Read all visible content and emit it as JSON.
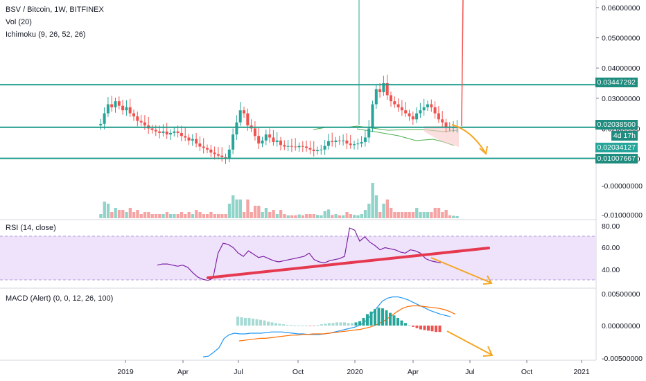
{
  "header": {
    "title": "BSV / Bitcoin, 1W, BITFINEX",
    "vol_label": "Vol (20)",
    "ichimoku_label": "Ichimoku (9, 26, 52, 26)",
    "rsi_label": "RSI (14, close)",
    "macd_label": "MACD (Alert) (0, 0, 12, 26, 100)"
  },
  "colors": {
    "up": "#26a69a",
    "down": "#ef5350",
    "level_line": "#1e9c8a",
    "rsi_band": "#e9dcfb",
    "rsi_line": "#7b1fa2",
    "trend": "#e53950",
    "arrow": "#f5a623",
    "macd": "#2196f3",
    "signal": "#ff6d00",
    "cloud_line": "#4caf50"
  },
  "price_scale": {
    "ticks": [
      "0.06000000",
      "0.05000000",
      "0.04000000",
      "0.03000000",
      "0.02000000",
      "0.01000000"
    ],
    "level_labels": [
      "0.03447292",
      "0.02038500",
      "4d 17h",
      "0.02034127",
      "0.01007667"
    ]
  },
  "volume_scale": {
    "ticks": [
      "-0.00000000",
      "-0.01000000"
    ]
  },
  "rsi_scale": {
    "ticks": [
      "80.00",
      "60.00",
      "40.00"
    ]
  },
  "macd_scale": {
    "ticks": [
      "0.00500000",
      "0.00000000",
      "-0.00500000"
    ]
  },
  "time_axis": {
    "ticks": [
      "2019",
      "Apr",
      "Jul",
      "Oct",
      "2020",
      "Apr",
      "Jul",
      "Oct",
      "2021"
    ]
  },
  "chart_data": {
    "type": "line",
    "price": [
      0.021,
      0.0215,
      0.025,
      0.028,
      0.027,
      0.029,
      0.0275,
      0.026,
      0.027,
      0.025,
      0.024,
      0.0225,
      0.022,
      0.021,
      0.02,
      0.0195,
      0.019,
      0.0185,
      0.019,
      0.018,
      0.0185,
      0.019,
      0.0185,
      0.0175,
      0.017,
      0.016,
      0.0165,
      0.015,
      0.014,
      0.0135,
      0.013,
      0.012,
      0.0115,
      0.011,
      0.0105,
      0.01,
      0.013,
      0.018,
      0.022,
      0.026,
      0.025,
      0.021,
      0.02,
      0.0175,
      0.015,
      0.016,
      0.018,
      0.017,
      0.0155,
      0.016,
      0.0145,
      0.014,
      0.0142,
      0.014,
      0.0138,
      0.0142,
      0.014,
      0.0135,
      0.013,
      0.0125,
      0.0128,
      0.013,
      0.0142,
      0.0158,
      0.0155,
      0.016,
      0.0158,
      0.016,
      0.015,
      0.0145,
      0.0148,
      0.015,
      0.0155,
      0.017,
      0.02,
      0.028,
      0.033,
      0.032,
      0.035,
      0.031,
      0.029,
      0.028,
      0.027,
      0.026,
      0.025,
      0.024,
      0.023,
      0.025,
      0.026,
      0.027,
      0.028,
      0.027,
      0.025,
      0.023,
      0.022,
      0.0205,
      0.0203,
      0.0204,
      0.0204
    ],
    "rsi": [
      44,
      45,
      45,
      44,
      43,
      44,
      42,
      37,
      33,
      31,
      30,
      32,
      55,
      64,
      63,
      60,
      55,
      52,
      57,
      54,
      51,
      52,
      50,
      48,
      47,
      48,
      49,
      50,
      51,
      52,
      55,
      49,
      47,
      46,
      48,
      49,
      50,
      52,
      78,
      76,
      66,
      70,
      65,
      62,
      58,
      60,
      59,
      58,
      56,
      55,
      58,
      57,
      55,
      50,
      48,
      47,
      46
    ],
    "rsi_start": 25,
    "macd": [
      -0.0049,
      -0.0048,
      -0.0042,
      -0.0035,
      -0.002,
      -0.0014,
      -0.0012,
      -0.0013,
      -0.0013,
      -0.0012,
      -0.0012,
      -0.0012,
      -0.0011,
      -0.001,
      -0.001,
      -0.001,
      -0.0011,
      -0.0012,
      -0.0013,
      -0.0013,
      -0.0014,
      -0.0014,
      -0.0014,
      -0.0013,
      -0.0012,
      -0.001,
      -0.0008,
      -0.0006,
      -0.0004,
      -0.0002,
      0.0002,
      0.0008,
      0.0018,
      0.0028,
      0.0038,
      0.0043,
      0.0045,
      0.0045,
      0.0043,
      0.004,
      0.0036,
      0.0032,
      0.0028,
      0.0024,
      0.0021,
      0.0018,
      0.0016,
      0.0014
    ],
    "signal": [
      -0.0024,
      -0.0023,
      -0.0022,
      -0.0021,
      -0.002,
      -0.002,
      -0.0019,
      -0.0018,
      -0.0017,
      -0.0016,
      -0.0015,
      -0.0015,
      -0.0014,
      -0.0014,
      -0.0013,
      -0.0013,
      -0.0013,
      -0.0012,
      -0.0011,
      -0.001,
      -0.0009,
      -0.0008,
      -0.0007,
      -0.0006,
      -0.0004,
      -0.0002,
      0.0001,
      0.0005,
      0.001,
      0.0016,
      0.0022,
      0.0027,
      0.003,
      0.0031,
      0.0031,
      0.003,
      0.0029,
      0.0028,
      0.0027,
      0.0025,
      0.0022,
      0.0018
    ],
    "hist": [
      0.0014,
      0.0013,
      0.0012,
      0.0012,
      0.0011,
      0.001,
      0.0009,
      0.0008,
      0.0006,
      0.0005,
      0.0004,
      0.0003,
      0.0002,
      0.0001,
      0.0001,
      0.0,
      0.0,
      0.0,
      0.0,
      -0.0001,
      -0.0001,
      0.0001,
      0.0002,
      0.0003,
      0.0004,
      0.0004,
      0.0005,
      0.0005,
      0.0005,
      0.0004,
      0.0004,
      0.0005,
      0.0007,
      0.0012,
      0.0018,
      0.0022,
      0.0026,
      0.0028,
      0.0027,
      0.0024,
      0.002,
      0.0016,
      0.0012,
      0.0008,
      0.0004,
      0.0001,
      -0.0002,
      -0.0004,
      -0.0006,
      -0.0007,
      -0.0008,
      -0.0009,
      -0.001,
      -0.001
    ],
    "levels": [
      0.03447292,
      0.020385,
      0.01007667
    ]
  }
}
